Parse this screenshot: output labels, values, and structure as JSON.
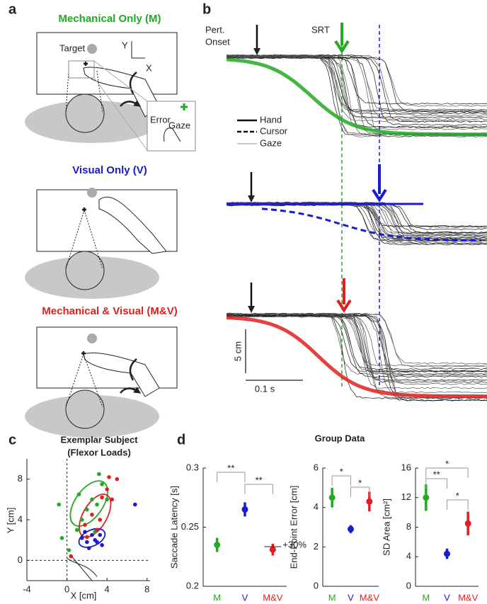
{
  "panel_labels": [
    "a",
    "b",
    "c",
    "d"
  ],
  "panel_a": {
    "conditions": [
      "Mechanical Only (M)",
      "Visual Only (V)",
      "Mechanical & Visual (M&V)"
    ],
    "target": "Target",
    "axis_y": "Y",
    "axis_x": "X",
    "inset": [
      "Error",
      "Gaze"
    ]
  },
  "panel_b": {
    "pert": "Pert.",
    "onset": "Onset",
    "srt": "SRT",
    "legend": [
      "Hand",
      "Cursor",
      "Gaze"
    ],
    "scale_y": "5 cm",
    "scale_x": "0.1 s"
  },
  "group_title": "Group Data",
  "chart_data": [
    {
      "type": "scatter",
      "title": "Exemplar Subject",
      "subtitle": "(Flexor Loads)",
      "x_label": "X [cm]",
      "y_label": "Y [cm]",
      "xlim": [
        -4,
        8.3
      ],
      "ylim": [
        -2,
        10
      ],
      "xticks": [
        -4,
        0,
        4,
        8
      ],
      "yticks": [
        0,
        4,
        8
      ],
      "series": [
        {
          "color": "#22aa22",
          "x": [
            -0.8,
            -0.5,
            0.2,
            1.2,
            1.5,
            2,
            2.5,
            3,
            3.2,
            3.5,
            4,
            2.8,
            1
          ],
          "y": [
            5.5,
            2.2,
            1,
            6.5,
            4,
            5,
            6,
            5.5,
            8.5,
            7.5,
            6,
            2.8,
            3
          ]
        },
        {
          "color": "#e02020",
          "x": [
            0.4,
            1.8,
            2.5,
            3,
            3.3,
            3.5,
            4,
            4.5,
            5,
            4.2,
            2
          ],
          "y": [
            0.4,
            3.5,
            4.5,
            3,
            4,
            6.2,
            7,
            6,
            8,
            8.2,
            2.3
          ]
        },
        {
          "color": "#1a1ad0",
          "x": [
            1.5,
            2,
            2.5,
            3,
            3.3,
            2.2,
            3.5,
            6.8,
            2.8,
            1.8
          ],
          "y": [
            2.2,
            1.8,
            2.5,
            1.8,
            2.5,
            1.2,
            1.5,
            5.5,
            2,
            2.8
          ]
        }
      ]
    },
    {
      "type": "errorbar",
      "y_label": "Saccade Latency [s]",
      "categories": [
        "M",
        "V",
        "M&V"
      ],
      "colors": [
        "#22aa22",
        "#1a1ad0",
        "#e02020"
      ],
      "values": [
        0.235,
        0.265,
        0.231
      ],
      "errors": [
        0.006,
        0.006,
        0.005
      ],
      "ylim": [
        0.2,
        0.3
      ],
      "yticks": [
        0.2,
        0.25,
        0.3
      ],
      "annotations": [
        "**",
        "**",
        "+30%"
      ]
    },
    {
      "type": "errorbar",
      "y_label": "End-Point Error [cm]",
      "categories": [
        "M",
        "V",
        "M&V"
      ],
      "colors": [
        "#22aa22",
        "#1a1ad0",
        "#e02020"
      ],
      "values": [
        4.5,
        2.9,
        4.3
      ],
      "errors": [
        0.5,
        0.2,
        0.5
      ],
      "ylim": [
        0,
        6
      ],
      "yticks": [
        0,
        2,
        4,
        6
      ],
      "annotations": [
        "*",
        "*"
      ]
    },
    {
      "type": "errorbar",
      "y_label": "SD Area [cm²]",
      "categories": [
        "M",
        "V",
        "M&V"
      ],
      "colors": [
        "#22aa22",
        "#1a1ad0",
        "#e02020"
      ],
      "values": [
        12,
        4.4,
        8.5
      ],
      "errors": [
        1.8,
        0.7,
        1.6
      ],
      "ylim": [
        0,
        16
      ],
      "yticks": [
        0,
        4,
        8,
        12,
        16
      ],
      "annotations": [
        "**",
        "*",
        "*"
      ]
    }
  ]
}
